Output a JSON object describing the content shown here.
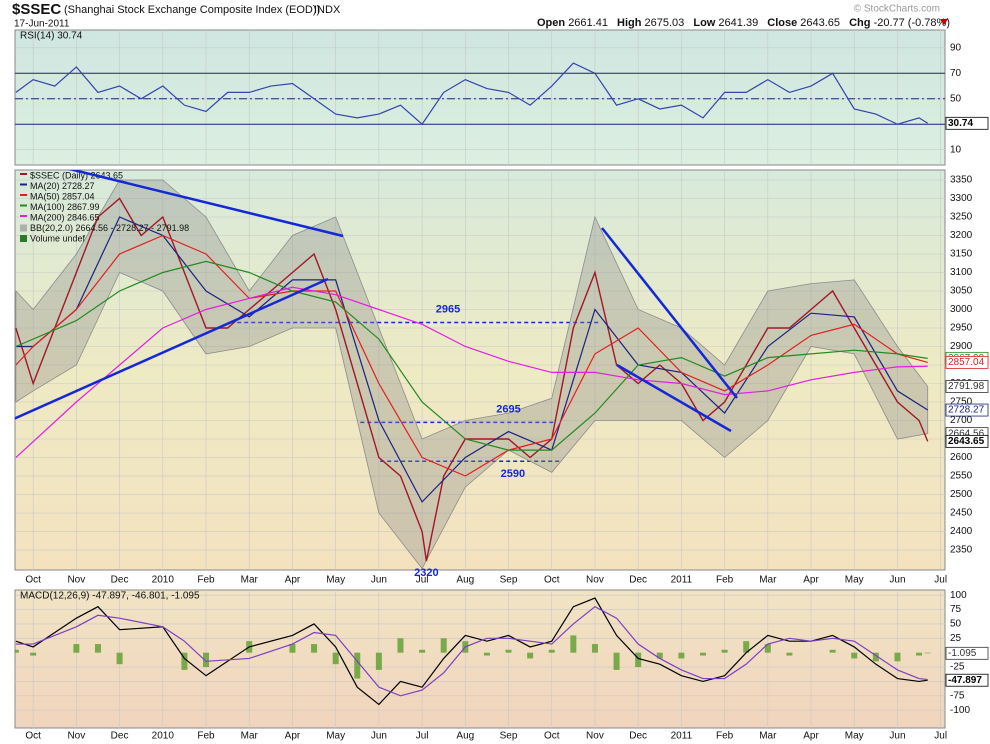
{
  "header": {
    "symbol": "$SSEC",
    "name": "(Shanghai Stock Exchange Composite Index (EOD))",
    "exchange": "INDX",
    "date": "17-Jun-2011",
    "quote": [
      {
        "label": "Open",
        "value": 2661.41
      },
      {
        "label": "High",
        "value": 2675.03
      },
      {
        "label": "Low",
        "value": 2641.39
      },
      {
        "label": "Close",
        "value": 2643.65
      },
      {
        "label": "Chg",
        "value": "-20.77 (-0.78%)"
      }
    ],
    "credit": "© StockCharts.com"
  },
  "chart_data": [
    {
      "type": "line",
      "title": "RSI(14) 30.74",
      "xlim": [
        -0.42,
        21.1
      ],
      "ylim": [
        -2,
        104
      ],
      "yticks": [
        10,
        30,
        50,
        70,
        90
      ],
      "levels": [
        30,
        70
      ],
      "midline": 50,
      "grid": true,
      "series": [
        {
          "name": "RSI(14)",
          "color": "#3344aa",
          "tag": true,
          "x": [
            -0.4,
            0,
            0.5,
            1,
            1.5,
            2,
            2.5,
            3,
            3.5,
            4,
            4.5,
            5,
            5.5,
            6,
            6.5,
            7,
            7.5,
            8,
            8.5,
            9,
            9.5,
            10,
            10.5,
            11,
            11.5,
            12,
            12.5,
            13,
            13.5,
            14,
            14.5,
            15,
            15.5,
            16,
            16.5,
            17,
            17.5,
            18,
            18.5,
            19,
            19.5,
            20,
            20.5,
            20.7
          ],
          "values": [
            55,
            65,
            60,
            75,
            55,
            60,
            50,
            60,
            45,
            40,
            55,
            55,
            60,
            62,
            50,
            38,
            35,
            38,
            45,
            30,
            55,
            65,
            58,
            55,
            45,
            60,
            78,
            70,
            45,
            50,
            42,
            45,
            35,
            55,
            55,
            65,
            55,
            60,
            70,
            42,
            38,
            30,
            35,
            30.74
          ]
        }
      ]
    },
    {
      "type": "line",
      "xlim": [
        -0.42,
        21.1
      ],
      "ylim": [
        2296,
        3377
      ],
      "yticks": [
        2350,
        2400,
        2450,
        2500,
        2550,
        2600,
        2650,
        2700,
        2750,
        2800,
        2850,
        2900,
        2950,
        3000,
        3050,
        3100,
        3150,
        3200,
        3250,
        3300,
        3350
      ],
      "xticks": [
        {
          "value": 0,
          "label": "Oct"
        },
        {
          "value": 1,
          "label": "Nov"
        },
        {
          "value": 2,
          "label": "Dec"
        },
        {
          "value": 3,
          "label": "2010"
        },
        {
          "value": 4,
          "label": "Feb"
        },
        {
          "value": 5,
          "label": "Mar"
        },
        {
          "value": 6,
          "label": "Apr"
        },
        {
          "value": 7,
          "label": "May"
        },
        {
          "value": 8,
          "label": "Jun"
        },
        {
          "value": 9,
          "label": "Jul"
        },
        {
          "value": 10,
          "label": "Aug"
        },
        {
          "value": 11,
          "label": "Sep"
        },
        {
          "value": 12,
          "label": "Oct"
        },
        {
          "value": 13,
          "label": "Nov"
        },
        {
          "value": 14,
          "label": "Dec"
        },
        {
          "value": 15,
          "label": "2011"
        },
        {
          "value": 16,
          "label": "Feb"
        },
        {
          "value": 17,
          "label": "Mar"
        },
        {
          "value": 18,
          "label": "Apr"
        },
        {
          "value": 19,
          "label": "May"
        },
        {
          "value": 20,
          "label": "Jun"
        },
        {
          "value": 21,
          "label": "Jul"
        }
      ],
      "grid": true,
      "series": [
        {
          "name": "$SSEC (Daily) 2643.65",
          "color": "#a01828",
          "tag": true,
          "x": [
            -0.4,
            0,
            0.5,
            1,
            1.5,
            2,
            2.5,
            3,
            3.5,
            4,
            4.5,
            5,
            5.5,
            6,
            6.5,
            7,
            7.5,
            8,
            8.5,
            9,
            9.1,
            9.5,
            10,
            10.5,
            11,
            11.5,
            12,
            12.5,
            13,
            13.5,
            14,
            14.5,
            15,
            15.5,
            16,
            16.5,
            17,
            17.5,
            18,
            18.5,
            19,
            19.5,
            20,
            20.5,
            20.7
          ],
          "values": [
            2950,
            2800,
            2950,
            3100,
            3250,
            3300,
            3200,
            3250,
            3100,
            2950,
            2950,
            3000,
            3050,
            3100,
            3150,
            3000,
            2800,
            2600,
            2550,
            2400,
            2320,
            2550,
            2650,
            2650,
            2650,
            2600,
            2650,
            2950,
            3100,
            2850,
            2800,
            2850,
            2800,
            2700,
            2750,
            2850,
            2950,
            2950,
            3000,
            3050,
            2950,
            2850,
            2750,
            2700,
            2643.65
          ]
        },
        {
          "name": "MA(20) 2728.27",
          "color": "#1a237e",
          "tag": true,
          "x": [
            -0.4,
            0,
            1,
            2,
            3,
            4,
            5,
            6,
            7,
            8,
            9,
            10,
            11,
            12,
            13,
            14,
            15,
            16,
            17,
            18,
            19,
            20,
            20.7
          ],
          "values": [
            2900,
            2900,
            3000,
            3250,
            3200,
            3050,
            2980,
            3080,
            3080,
            2700,
            2480,
            2600,
            2670,
            2620,
            3000,
            2850,
            2830,
            2720,
            2900,
            2990,
            2980,
            2780,
            2728.27
          ]
        },
        {
          "name": "MA(50) 2857.04",
          "color": "#e02020",
          "tag": true,
          "x": [
            -0.4,
            0,
            1,
            2,
            3,
            4,
            5,
            6,
            7,
            8,
            9,
            10,
            11,
            12,
            13,
            14,
            15,
            16,
            17,
            18,
            19,
            20,
            20.7
          ],
          "values": [
            2850,
            2900,
            3000,
            3150,
            3200,
            3150,
            3030,
            3050,
            3050,
            2800,
            2600,
            2550,
            2620,
            2650,
            2880,
            2950,
            2830,
            2780,
            2850,
            2930,
            2960,
            2880,
            2857.04
          ]
        },
        {
          "name": "MA(100) 2867.99",
          "color": "#228b22",
          "tag": true,
          "x": [
            -0.4,
            1,
            2,
            3,
            4,
            5,
            6,
            7,
            8,
            9,
            10,
            11,
            12,
            13,
            14,
            15,
            16,
            17,
            18,
            19,
            20,
            20.7
          ],
          "values": [
            2900,
            2970,
            3050,
            3100,
            3130,
            3100,
            3050,
            3020,
            2920,
            2750,
            2650,
            2620,
            2620,
            2720,
            2850,
            2870,
            2820,
            2870,
            2880,
            2890,
            2880,
            2867.99
          ]
        },
        {
          "name": "MA(200) 2846.65",
          "color": "#e020e0",
          "tag": false,
          "x": [
            -0.4,
            1,
            2,
            3,
            4,
            5,
            6,
            7,
            8,
            9,
            10,
            11,
            12,
            13,
            14,
            15,
            16,
            17,
            18,
            19,
            20,
            20.7
          ],
          "values": [
            2600,
            2750,
            2850,
            2950,
            3000,
            3030,
            3060,
            3040,
            3000,
            2960,
            2900,
            2860,
            2830,
            2830,
            2810,
            2800,
            2770,
            2780,
            2810,
            2830,
            2845,
            2846.65
          ]
        }
      ],
      "bands": [
        {
          "name": "BB(20,2.0) 2664.56 - 2728.27 - 2791.98",
          "color": "#8c8c8c",
          "x": [
            -0.4,
            0,
            1,
            2,
            3,
            4,
            5,
            6,
            7,
            8,
            9,
            10,
            11,
            12,
            13,
            14,
            15,
            16,
            17,
            18,
            19,
            20,
            20.7
          ],
          "upper": [
            3050,
            3000,
            3150,
            3350,
            3350,
            3250,
            3050,
            3200,
            3250,
            2950,
            2650,
            2700,
            2720,
            2760,
            3250,
            3000,
            2950,
            2850,
            3050,
            3070,
            3080,
            2900,
            2791.98
          ],
          "lower": [
            2750,
            2780,
            2850,
            3100,
            3050,
            2880,
            2900,
            2950,
            2950,
            2450,
            2300,
            2520,
            2620,
            2560,
            2700,
            2700,
            2700,
            2600,
            2700,
            2900,
            2880,
            2650,
            2664.56
          ]
        }
      ],
      "legend_extra": [
        "Volume undef"
      ],
      "levels": [
        {
          "value": 2965,
          "x": [
            4.56,
            13.1
          ],
          "label_x": 9.6,
          "placement": "above"
        },
        {
          "value": 2695,
          "x": [
            7.57,
            12.08
          ],
          "label_x": 11.0,
          "placement": "above"
        },
        {
          "value": 2590,
          "x": [
            8.03,
            12.2
          ],
          "label_x": 11.1,
          "placement": "below"
        }
      ],
      "low_label": {
        "value": 2320,
        "x": 9.1
      }
    },
    {
      "type": "line",
      "title": "MACD(12,26,9) -47.897, -46.801, -1.095",
      "xlim": [
        -0.42,
        21.1
      ],
      "ylim": [
        -131,
        109
      ],
      "yticks": [
        -100,
        -75,
        -50,
        -25,
        25,
        50,
        75,
        100
      ],
      "xticks": [
        {
          "value": 0,
          "label": "Oct"
        },
        {
          "value": 1,
          "label": "Nov"
        },
        {
          "value": 2,
          "label": "Dec"
        },
        {
          "value": 3,
          "label": "2010"
        },
        {
          "value": 4,
          "label": "Feb"
        },
        {
          "value": 5,
          "label": "Mar"
        },
        {
          "value": 6,
          "label": "Apr"
        },
        {
          "value": 7,
          "label": "May"
        },
        {
          "value": 8,
          "label": "Jun"
        },
        {
          "value": 9,
          "label": "Jul"
        },
        {
          "value": 10,
          "label": "Aug"
        },
        {
          "value": 11,
          "label": "Sep"
        },
        {
          "value": 12,
          "label": "Oct"
        },
        {
          "value": 13,
          "label": "Nov"
        },
        {
          "value": 14,
          "label": "Dec"
        },
        {
          "value": 15,
          "label": "2011"
        },
        {
          "value": 16,
          "label": "Feb"
        },
        {
          "value": 17,
          "label": "Mar"
        },
        {
          "value": 18,
          "label": "Apr"
        },
        {
          "value": 19,
          "label": "May"
        },
        {
          "value": 20,
          "label": "Jun"
        },
        {
          "value": 21,
          "label": "Jul"
        }
      ],
      "grid": true,
      "histogram": {
        "color": "#5a9e2a",
        "tag": true,
        "x": [
          -0.4,
          0,
          1,
          1.5,
          2,
          3,
          3.5,
          4,
          5,
          6,
          6.5,
          7,
          7.5,
          8,
          8.5,
          9,
          9.5,
          10,
          10.5,
          11,
          11.5,
          12,
          12.5,
          13,
          13.5,
          14,
          14.5,
          15,
          15.5,
          16,
          16.5,
          17,
          17.5,
          18,
          18.5,
          19,
          19.5,
          20,
          20.5,
          20.7
        ],
        "values": [
          5,
          -5,
          15,
          15,
          -20,
          0,
          -30,
          -25,
          20,
          15,
          15,
          -20,
          -45,
          -30,
          25,
          5,
          25,
          20,
          -5,
          5,
          -10,
          5,
          30,
          15,
          -30,
          -25,
          -10,
          -10,
          -5,
          5,
          20,
          15,
          -5,
          0,
          5,
          -10,
          -15,
          -15,
          -5,
          -1.095
        ]
      },
      "series": [
        {
          "name": "MACD",
          "color": "#000000",
          "tag": true,
          "x": [
            -0.4,
            0,
            1,
            1.5,
            2,
            3,
            3.5,
            4,
            5,
            6,
            6.5,
            7,
            7.5,
            8,
            8.5,
            9,
            9.5,
            10,
            10.5,
            11,
            11.5,
            12,
            12.5,
            13,
            13.5,
            14,
            14.5,
            15,
            15.5,
            16,
            16.5,
            17,
            17.5,
            18,
            18.5,
            19,
            19.5,
            20,
            20.5,
            20.7
          ],
          "values": [
            20,
            10,
            60,
            80,
            40,
            45,
            -10,
            -40,
            10,
            30,
            50,
            10,
            -60,
            -90,
            -50,
            -60,
            -10,
            30,
            20,
            30,
            10,
            20,
            80,
            95,
            30,
            -10,
            -20,
            -40,
            -50,
            -40,
            0,
            30,
            20,
            20,
            30,
            10,
            -20,
            -45,
            -50,
            -47.897
          ]
        },
        {
          "name": "Signal",
          "color": "#7b3fc4",
          "tag": false,
          "x": [
            -0.4,
            0,
            1,
            1.5,
            2,
            3,
            3.5,
            4,
            5,
            6,
            6.5,
            7,
            7.5,
            8,
            8.5,
            9,
            9.5,
            10,
            10.5,
            11,
            11.5,
            12,
            12.5,
            13,
            13.5,
            14,
            14.5,
            15,
            15.5,
            16,
            16.5,
            17,
            17.5,
            18,
            18.5,
            19,
            19.5,
            20,
            20.5,
            20.7
          ],
          "values": [
            15,
            15,
            45,
            65,
            60,
            45,
            20,
            -15,
            -10,
            15,
            35,
            30,
            -15,
            -60,
            -75,
            -65,
            -35,
            10,
            25,
            25,
            20,
            15,
            50,
            80,
            60,
            15,
            -10,
            -30,
            -45,
            -45,
            -20,
            15,
            25,
            20,
            25,
            20,
            -5,
            -30,
            -45,
            -46.801
          ]
        }
      ]
    }
  ]
}
